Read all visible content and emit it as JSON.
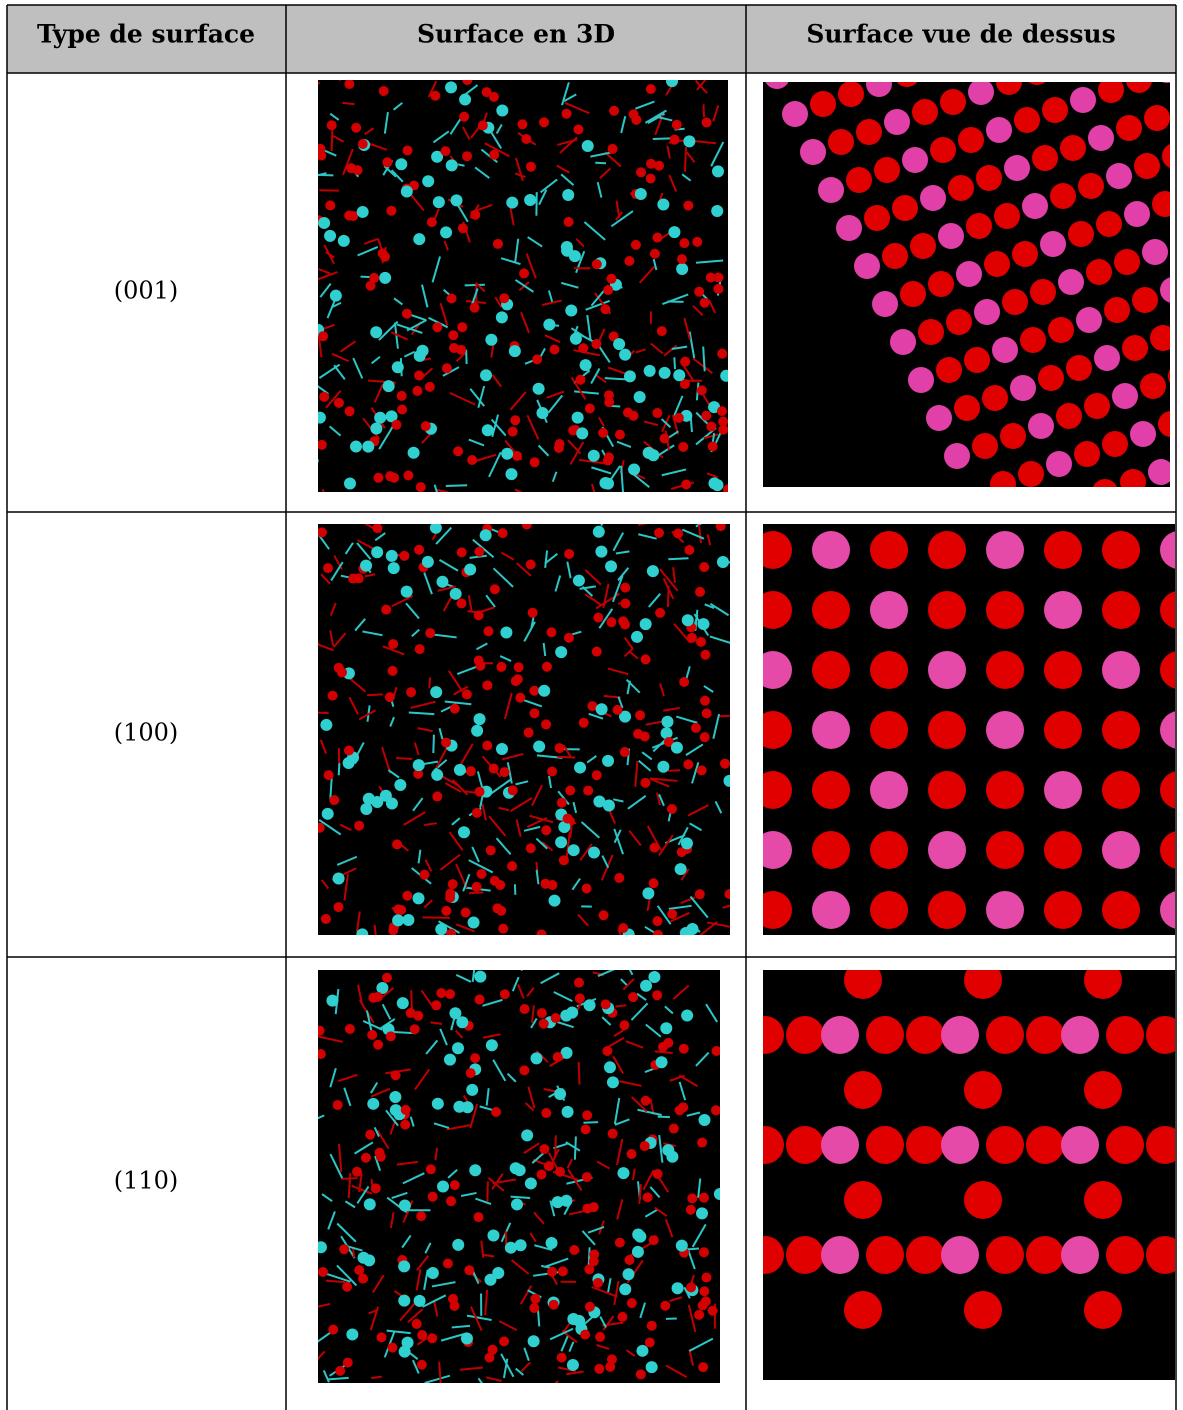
{
  "table": {
    "header": [
      "Type de surface",
      "Surface en 3D",
      "Surface vue de dessus"
    ],
    "rows": [
      "(001)",
      "(100)",
      "(110)"
    ]
  }
}
